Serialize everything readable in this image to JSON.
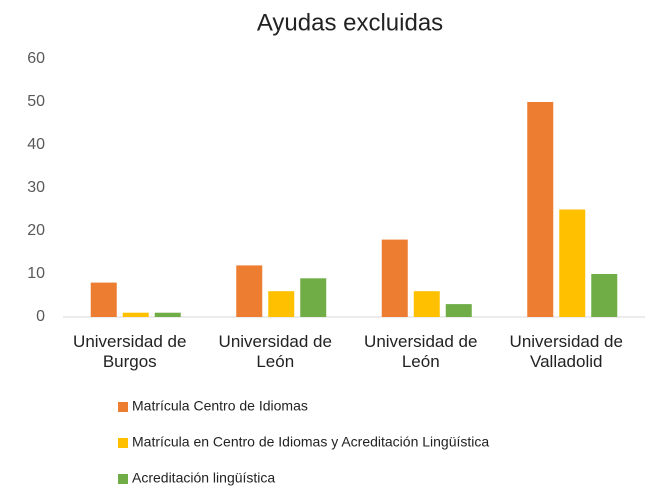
{
  "chart_data": {
    "type": "bar",
    "title": "Ayudas excluidas",
    "categories": [
      "Universidad de Burgos",
      "Universidad de León",
      "Universidad de León",
      "Universidad de Valladolid"
    ],
    "series": [
      {
        "name": "Matrícula Centro de Idiomas",
        "color": "#ed7d31",
        "values": [
          8,
          12,
          18,
          50
        ]
      },
      {
        "name": "Matrícula en Centro de Idiomas y Acreditación Lingüística",
        "color": "#ffc000",
        "values": [
          1,
          6,
          6,
          25
        ]
      },
      {
        "name": "Acreditación lingüística",
        "color": "#70ad47",
        "values": [
          1,
          9,
          3,
          10
        ]
      }
    ],
    "ylim": [
      0,
      60
    ],
    "yticks": [
      0,
      10,
      20,
      30,
      40,
      50,
      60
    ],
    "grid": false,
    "legend": "bottom"
  }
}
